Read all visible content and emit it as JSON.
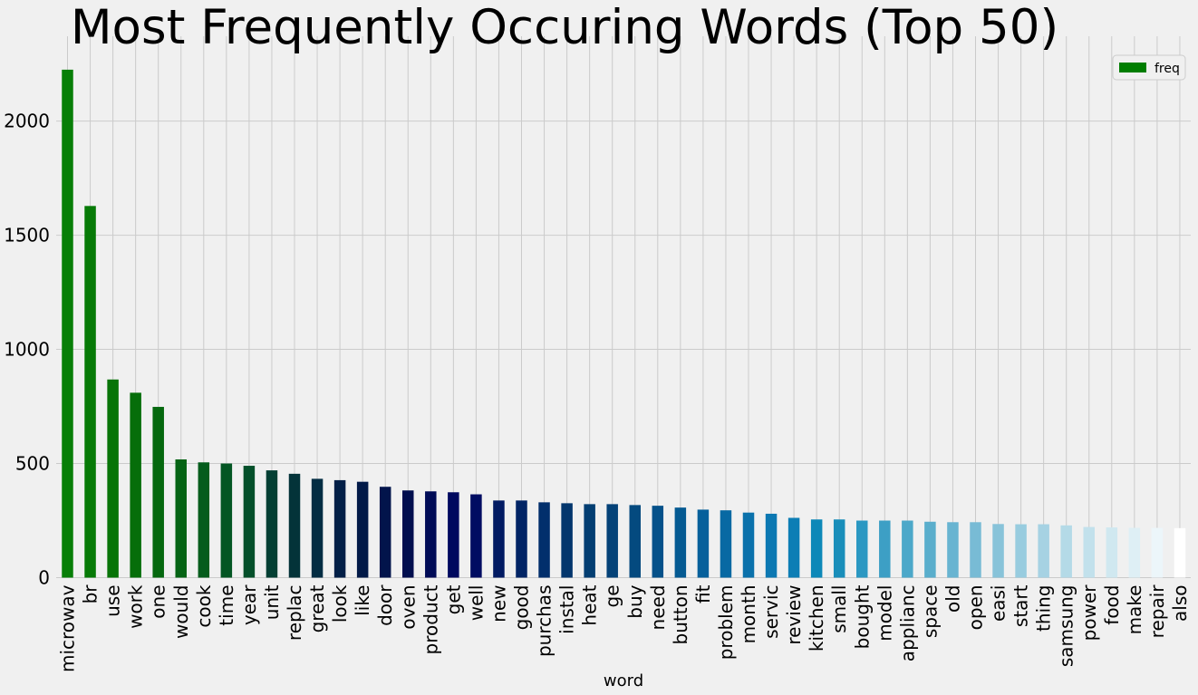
{
  "chart_data": {
    "type": "bar",
    "title": "Most Frequently Occuring Words (Top 50)",
    "xlabel": "word",
    "ylabel": "",
    "ylim": [
      0,
      2300
    ],
    "yticks": [
      0,
      500,
      1000,
      1500,
      2000
    ],
    "grid": true,
    "legend_position": "top-right",
    "categories": [
      "microwav",
      "br",
      "use",
      "work",
      "one",
      "would",
      "cook",
      "time",
      "year",
      "unit",
      "replac",
      "great",
      "look",
      "like",
      "door",
      "oven",
      "product",
      "get",
      "well",
      "new",
      "good",
      "purchas",
      "instal",
      "heat",
      "ge",
      "buy",
      "need",
      "button",
      "fit",
      "problem",
      "month",
      "servic",
      "review",
      "kitchen",
      "small",
      "bought",
      "model",
      "applianc",
      "space",
      "old",
      "open",
      "easi",
      "start",
      "thing",
      "samsung",
      "power",
      "food",
      "make",
      "repair",
      "also"
    ],
    "series": [
      {
        "name": "freq",
        "legend_color": "#007d00",
        "values": [
          2225,
          1628,
          868,
          810,
          748,
          518,
          505,
          500,
          490,
          470,
          455,
          433,
          427,
          420,
          398,
          382,
          378,
          374,
          365,
          338,
          338,
          330,
          326,
          322,
          322,
          318,
          315,
          307,
          298,
          295,
          285,
          280,
          262,
          255,
          255,
          250,
          250,
          250,
          245,
          243,
          243,
          235,
          234,
          234,
          229,
          222,
          220,
          218,
          218,
          217
        ],
        "colors": [
          "#087f08",
          "#077a07",
          "#077407",
          "#066e0a",
          "#05680e",
          "#056314",
          "#045c1c",
          "#035623",
          "#04502a",
          "#033f33",
          "#033339",
          "#032d43",
          "#021f47",
          "#021a48",
          "#02144b",
          "#010e4e",
          "#000b56",
          "#00095f",
          "#000c62",
          "#011a63",
          "#012465",
          "#022f6c",
          "#03366d",
          "#033e72",
          "#044278",
          "#044a7f",
          "#05518a",
          "#055a92",
          "#06609b",
          "#0869a3",
          "#0a71ab",
          "#0c78b2",
          "#0d7eb5",
          "#0d88b8",
          "#198eba",
          "#2b98c2",
          "#3d9fc5",
          "#4ca8c9",
          "#5aaecc",
          "#68b4d1",
          "#78bbd5",
          "#88c3d9",
          "#98ccdf",
          "#a6d2e3",
          "#b4dae7",
          "#c2e1ec",
          "#d0e8f0",
          "#deeff5",
          "#ecf6fa",
          "#ffffff"
        ]
      }
    ]
  }
}
